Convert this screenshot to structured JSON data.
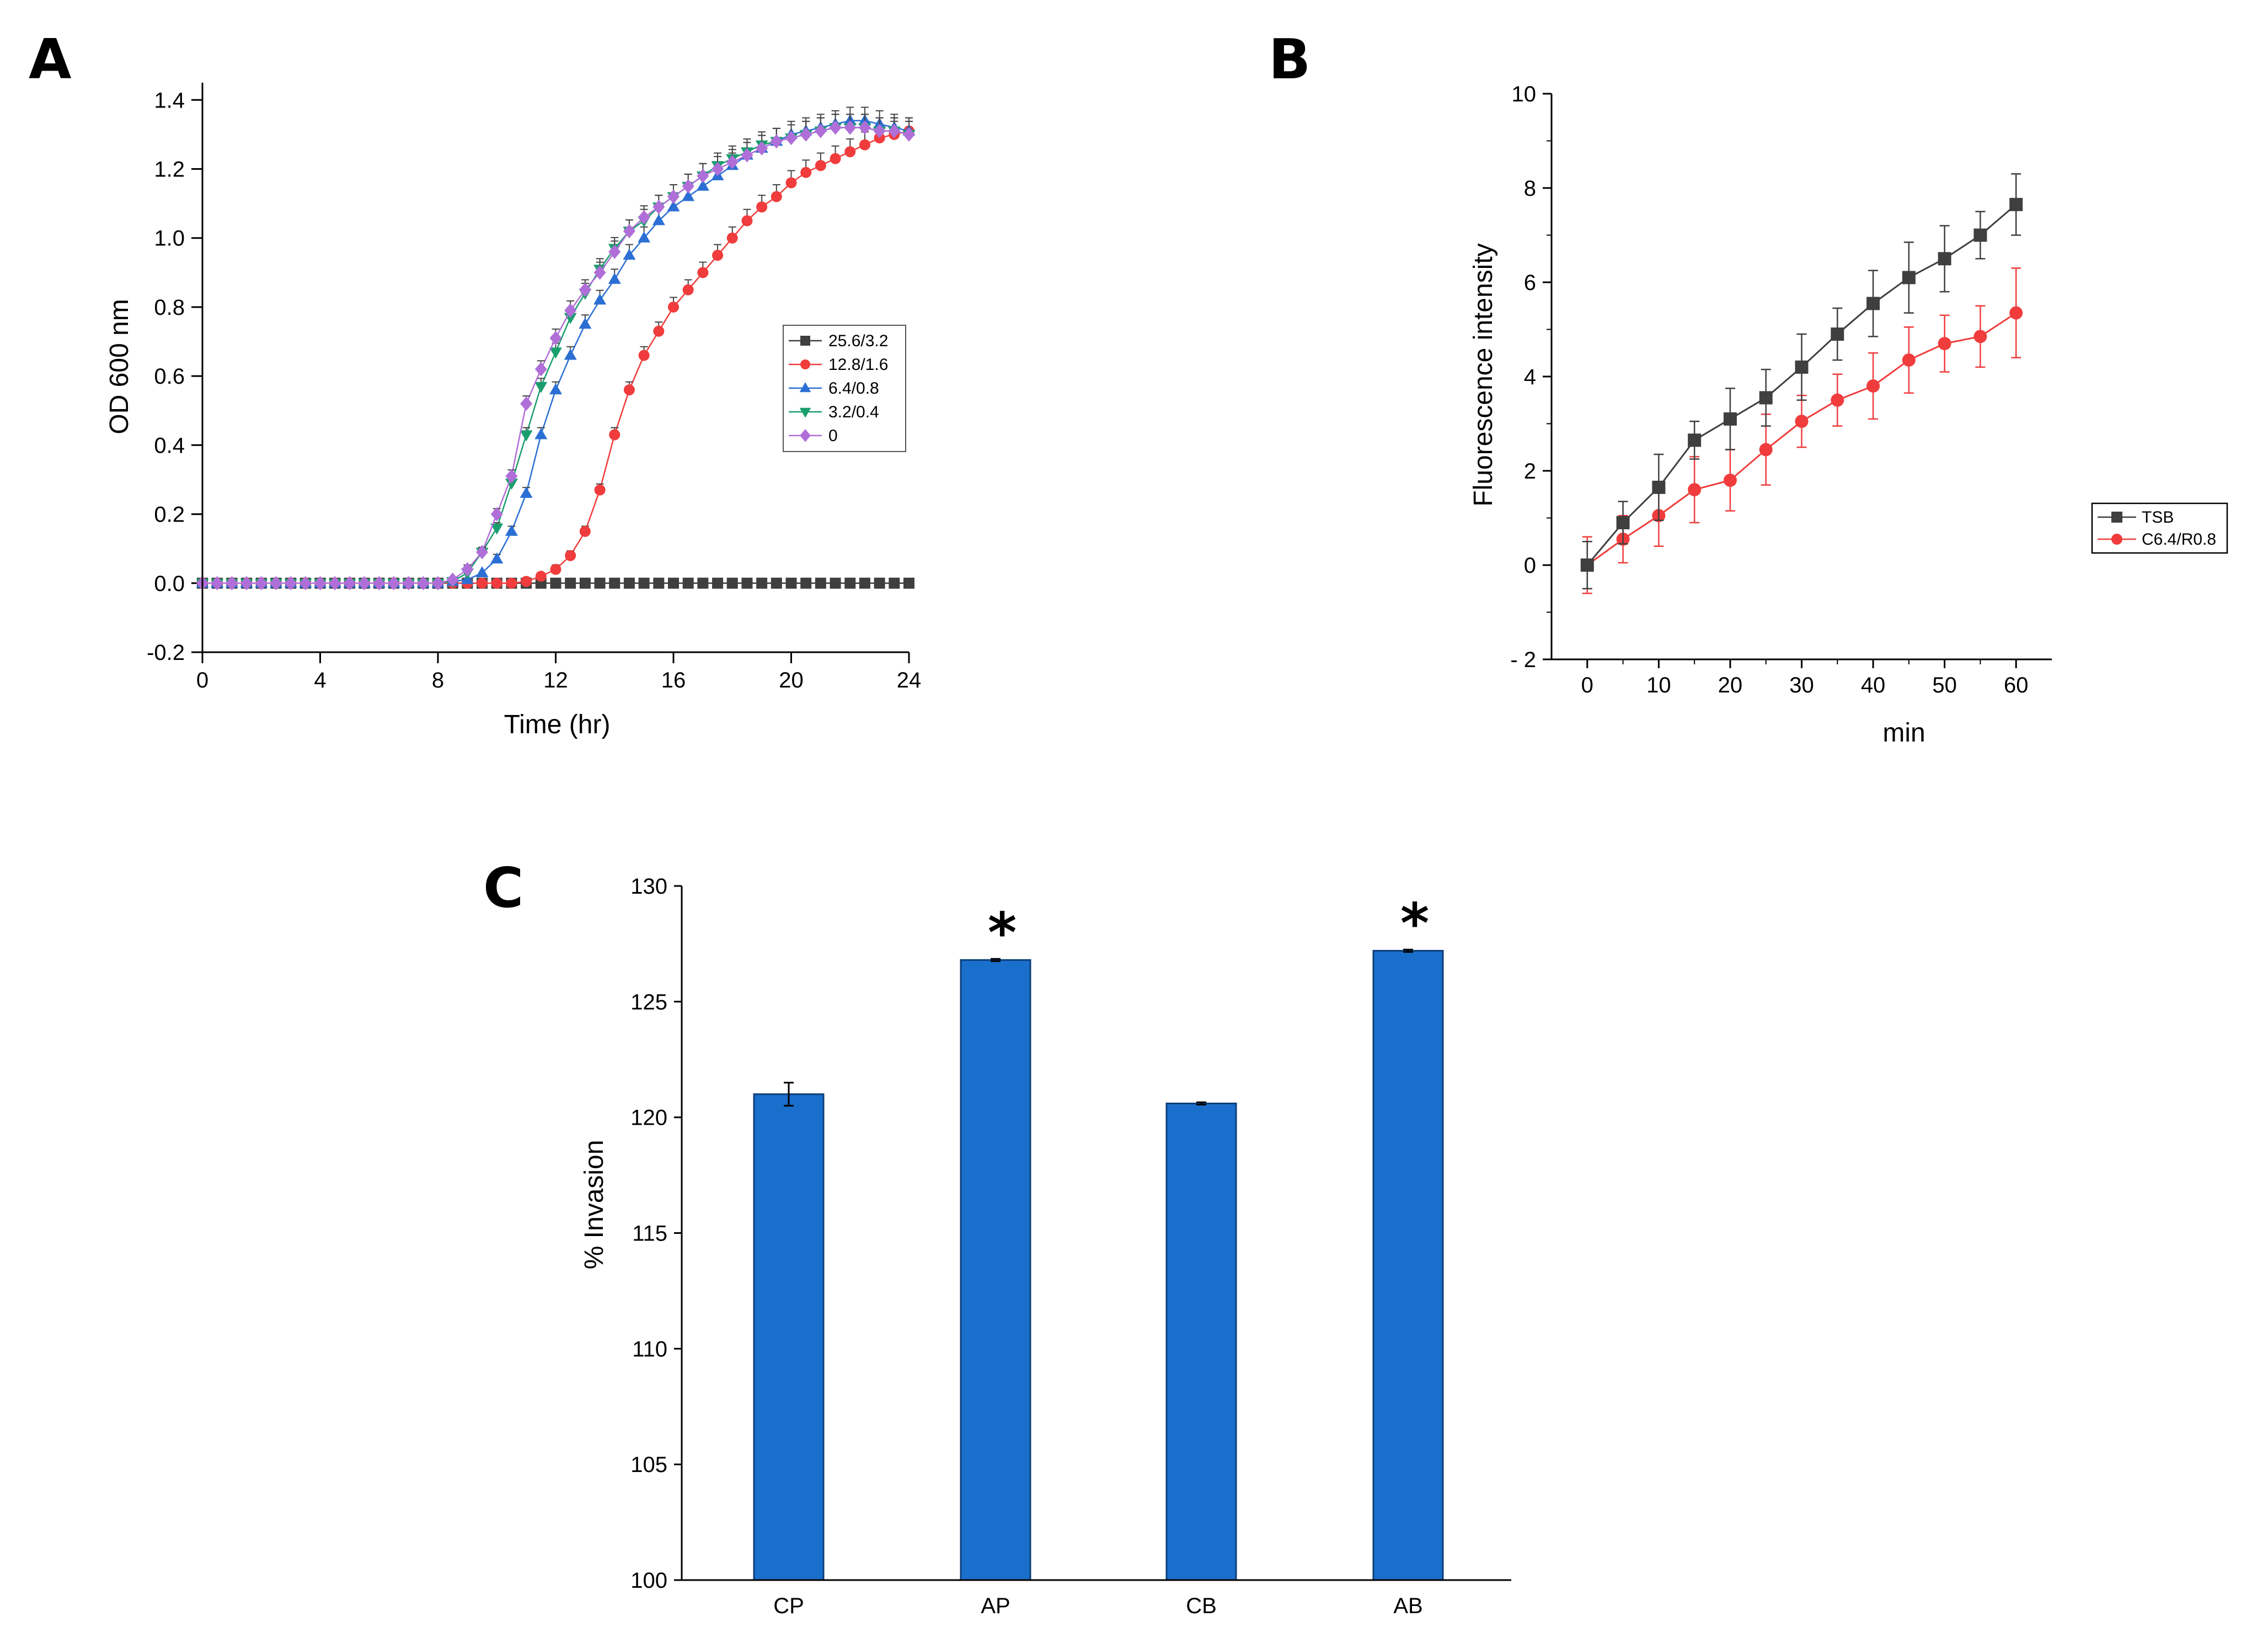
{
  "chart_data": [
    {
      "panel": "A",
      "type": "scatter",
      "xlabel": "Time (hr)",
      "ylabel": "OD 600 nm",
      "xlim": [
        0,
        24
      ],
      "ylim": [
        -0.2,
        1.45
      ],
      "xticks": [
        0,
        4,
        8,
        12,
        16,
        20,
        24
      ],
      "yticks": [
        -0.2,
        0.0,
        0.2,
        0.4,
        0.6,
        0.8,
        1.0,
        1.2,
        1.4
      ],
      "ytick_labels": [
        "-0.2",
        "0.0",
        "0.2",
        "0.4",
        "0.6",
        "0.8",
        "1.0",
        "1.2",
        "1.4"
      ],
      "legend_position": "right-middle",
      "x": [
        0,
        0.5,
        1,
        1.5,
        2,
        2.5,
        3,
        3.5,
        4,
        4.5,
        5,
        5.5,
        6,
        6.5,
        7,
        7.5,
        8,
        8.5,
        9,
        9.5,
        10,
        10.5,
        11,
        11.5,
        12,
        12.5,
        13,
        13.5,
        14,
        14.5,
        15,
        15.5,
        16,
        16.5,
        17,
        17.5,
        18,
        18.5,
        19,
        19.5,
        20,
        20.5,
        21,
        21.5,
        22,
        22.5,
        23,
        23.5,
        24
      ],
      "series": [
        {
          "name": "25.6/3.2",
          "color": "#3f3f3f",
          "marker": "square",
          "values": [
            0,
            0,
            0,
            0,
            0,
            0,
            0,
            0,
            0,
            0,
            0,
            0,
            0,
            0,
            0,
            0,
            0,
            0,
            0,
            0,
            0,
            0,
            0,
            0,
            0,
            0,
            0,
            0,
            0,
            0,
            0,
            0,
            0,
            0,
            0,
            0,
            0,
            0,
            0,
            0,
            0,
            0,
            0,
            0,
            0,
            0,
            0,
            0,
            0
          ]
        },
        {
          "name": "12.8/1.6",
          "color": "#f03c3c",
          "marker": "circle",
          "values": [
            0,
            0,
            0,
            0,
            0,
            0,
            0,
            0,
            0,
            0,
            0,
            0,
            0,
            0,
            0,
            0,
            0,
            0,
            0,
            0,
            0,
            0,
            0.005,
            0.02,
            0.04,
            0.08,
            0.15,
            0.27,
            0.43,
            0.56,
            0.66,
            0.73,
            0.8,
            0.85,
            0.9,
            0.95,
            1.0,
            1.05,
            1.09,
            1.12,
            1.16,
            1.19,
            1.21,
            1.23,
            1.25,
            1.27,
            1.29,
            1.3,
            1.31
          ]
        },
        {
          "name": "6.4/0.8",
          "color": "#2b6fd4",
          "marker": "triangle-up",
          "values": [
            0,
            0,
            0,
            0,
            0,
            0,
            0,
            0,
            0,
            0,
            0,
            0,
            0,
            0,
            0,
            0,
            0,
            0.005,
            0.01,
            0.03,
            0.07,
            0.15,
            0.26,
            0.43,
            0.56,
            0.66,
            0.75,
            0.82,
            0.88,
            0.95,
            1.0,
            1.05,
            1.09,
            1.12,
            1.15,
            1.18,
            1.21,
            1.24,
            1.26,
            1.28,
            1.3,
            1.31,
            1.32,
            1.33,
            1.34,
            1.34,
            1.33,
            1.32,
            1.31
          ]
        },
        {
          "name": "3.2/0.4",
          "color": "#1a9e6e",
          "marker": "triangle-down",
          "values": [
            0,
            0,
            0,
            0,
            0,
            0,
            0,
            0,
            0,
            0,
            0,
            0,
            0,
            0,
            0,
            0,
            0,
            0.005,
            0.03,
            0.09,
            0.16,
            0.29,
            0.43,
            0.57,
            0.67,
            0.77,
            0.84,
            0.91,
            0.97,
            1.02,
            1.05,
            1.09,
            1.12,
            1.15,
            1.18,
            1.21,
            1.23,
            1.25,
            1.27,
            1.28,
            1.29,
            1.3,
            1.31,
            1.32,
            1.32,
            1.32,
            1.31,
            1.31,
            1.3
          ]
        },
        {
          "name": "0",
          "color": "#b06fd8",
          "marker": "diamond",
          "values": [
            0,
            0,
            0,
            0,
            0,
            0,
            0,
            0,
            0,
            0,
            0,
            0,
            0,
            0,
            0,
            0,
            0,
            0.01,
            0.04,
            0.09,
            0.2,
            0.31,
            0.52,
            0.62,
            0.71,
            0.79,
            0.85,
            0.9,
            0.96,
            1.02,
            1.06,
            1.09,
            1.12,
            1.15,
            1.18,
            1.2,
            1.22,
            1.24,
            1.26,
            1.28,
            1.29,
            1.3,
            1.31,
            1.32,
            1.32,
            1.32,
            1.31,
            1.31,
            1.3
          ]
        }
      ]
    },
    {
      "panel": "B",
      "type": "line",
      "xlabel": "min",
      "ylabel": "Fluorescence intensity",
      "xlim": [
        -5,
        65
      ],
      "ylim": [
        -2,
        10
      ],
      "xticks": [
        0,
        10,
        20,
        30,
        40,
        50,
        60
      ],
      "yticks": [
        -2,
        0,
        2,
        4,
        6,
        8,
        10
      ],
      "ytick_labels": [
        "- 2",
        "0",
        "2",
        "4",
        "6",
        "8",
        "10"
      ],
      "legend_position": "bottom-right",
      "x": [
        0,
        5,
        10,
        15,
        20,
        25,
        30,
        35,
        40,
        45,
        50,
        55,
        60
      ],
      "series": [
        {
          "name": "TSB",
          "color": "#3f3f3f",
          "marker": "square",
          "values": [
            0,
            0.9,
            1.65,
            2.65,
            3.1,
            3.55,
            4.2,
            4.9,
            5.55,
            6.1,
            6.5,
            7.0,
            7.65
          ],
          "errors": [
            0.5,
            0.45,
            0.7,
            0.4,
            0.65,
            0.6,
            0.7,
            0.55,
            0.7,
            0.75,
            0.7,
            0.5,
            0.65
          ]
        },
        {
          "name": "C6.4/R0.8",
          "color": "#f03c3c",
          "marker": "circle",
          "values": [
            0,
            0.55,
            1.05,
            1.6,
            1.8,
            2.45,
            3.05,
            3.5,
            3.8,
            4.35,
            4.7,
            4.85,
            5.35
          ],
          "errors": [
            0.6,
            0.5,
            0.65,
            0.7,
            0.65,
            0.75,
            0.55,
            0.55,
            0.7,
            0.7,
            0.6,
            0.65,
            0.95
          ]
        }
      ]
    },
    {
      "panel": "C",
      "type": "bar",
      "xlabel": "",
      "ylabel": "% Invasion",
      "ylim": [
        100,
        130
      ],
      "yticks": [
        100,
        105,
        110,
        115,
        120,
        125,
        130
      ],
      "ytick_labels": [
        "100",
        "105",
        "110",
        "115",
        "120",
        "125",
        "130"
      ],
      "categories": [
        "CP",
        "AP",
        "CB",
        "AB"
      ],
      "values": [
        121.0,
        126.8,
        120.6,
        127.2
      ],
      "errors": [
        0.5,
        0.05,
        0.05,
        0.05
      ],
      "significant": [
        false,
        true,
        false,
        true
      ],
      "significance_marker": "*",
      "color": "#1b6fcc"
    }
  ]
}
